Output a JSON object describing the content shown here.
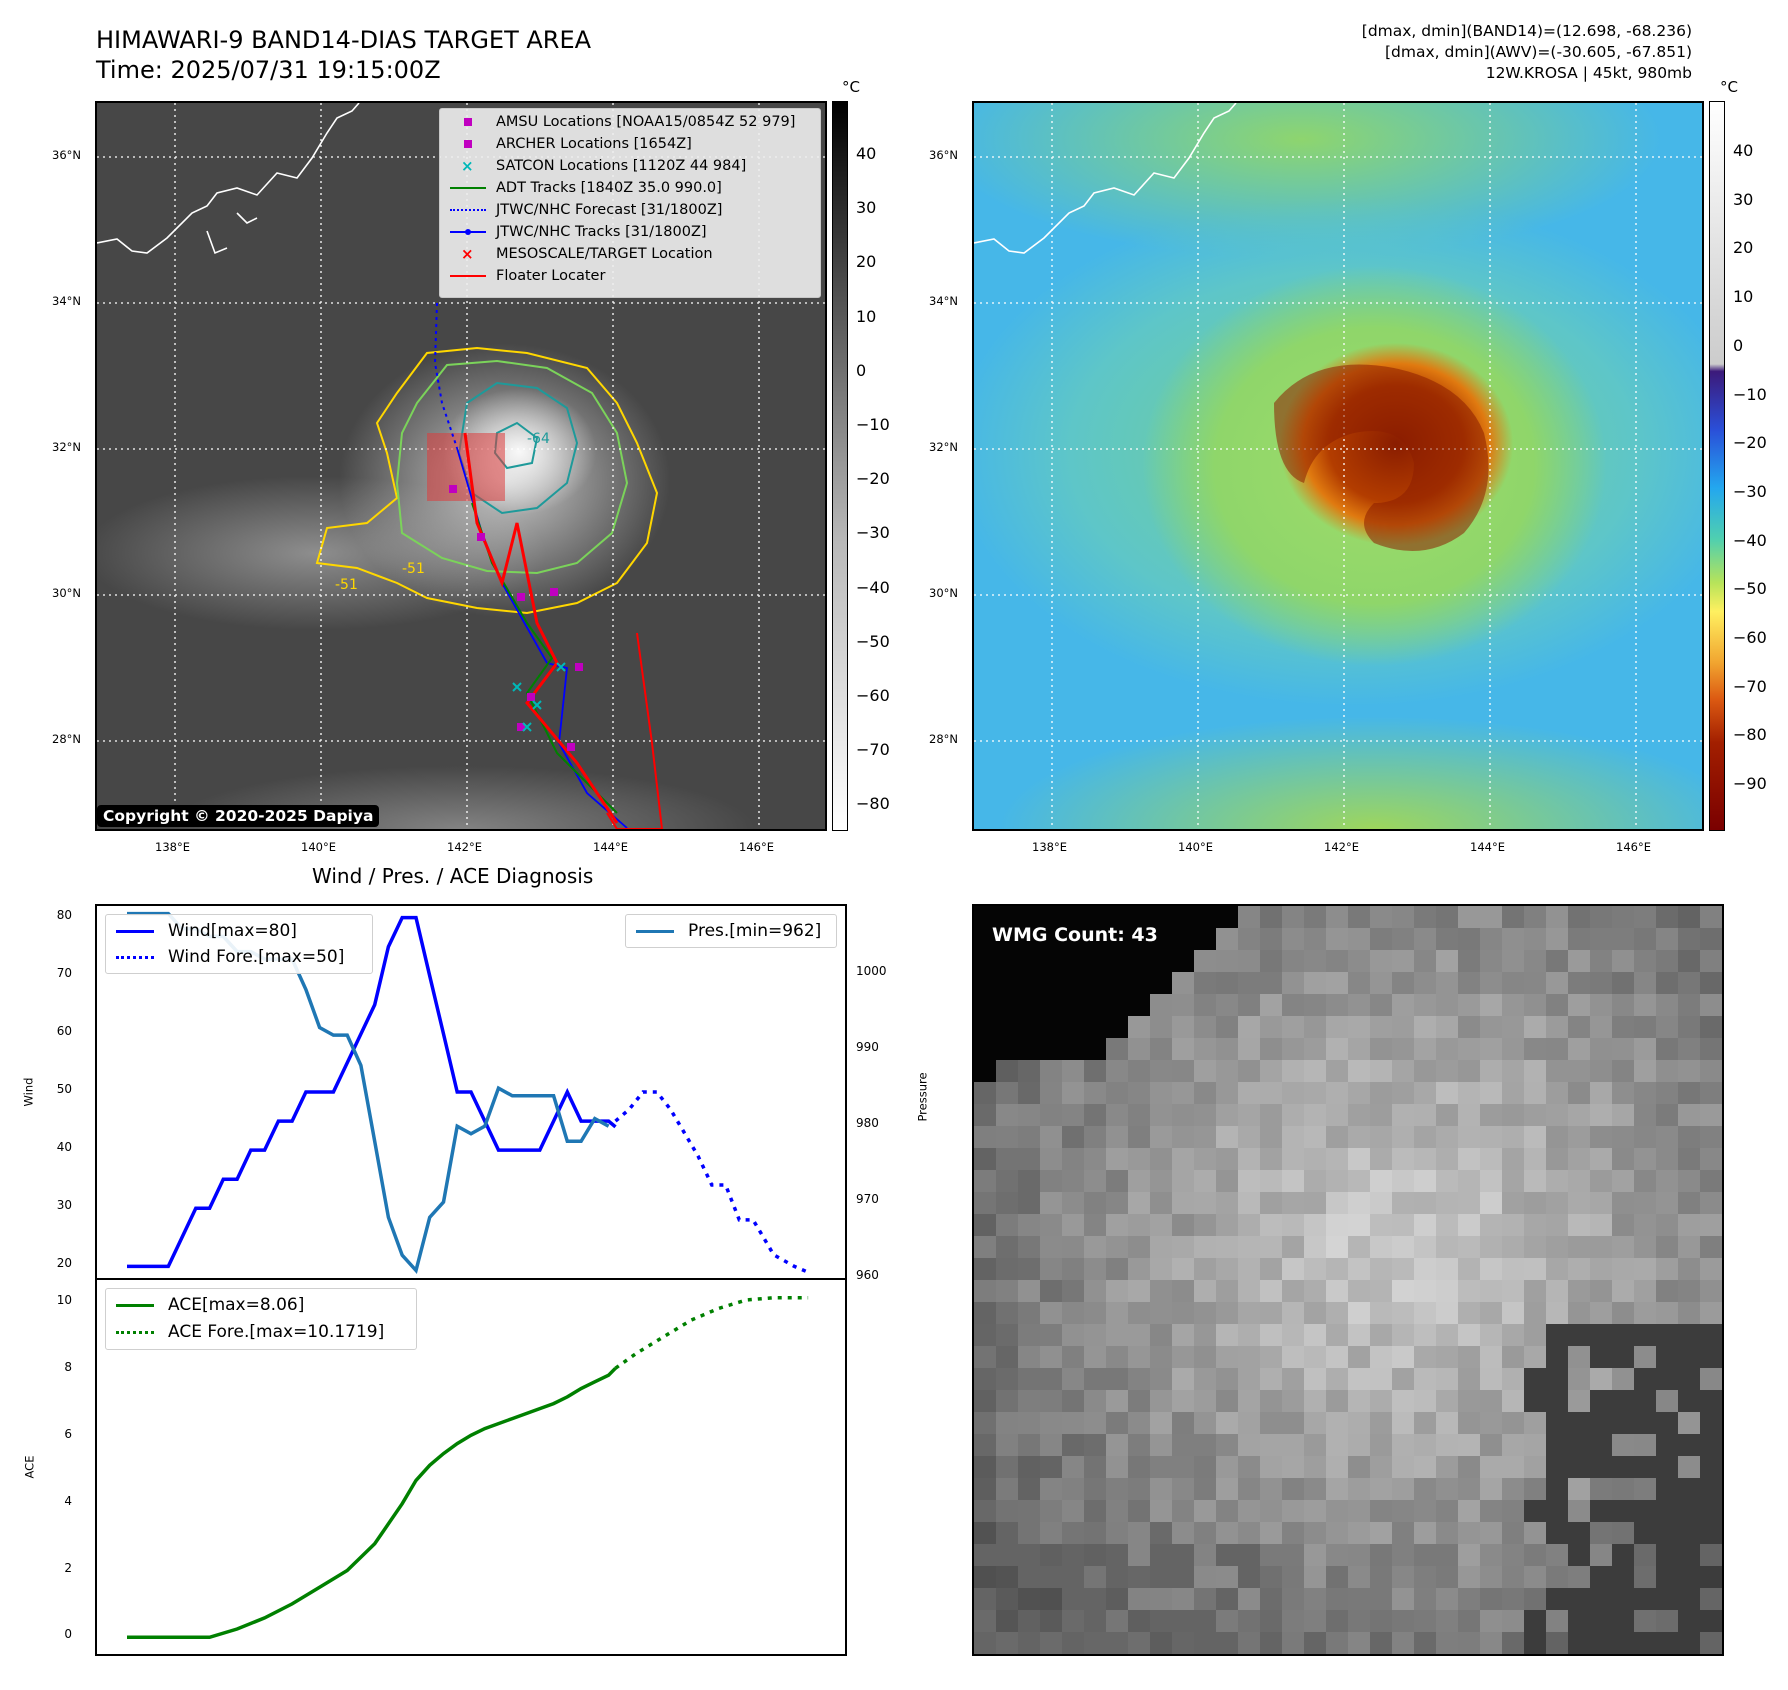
{
  "header": {
    "title_line1": "HIMAWARI-9 BAND14-DIAS TARGET AREA",
    "title_line2": "Time: 2025/07/31 19:15:00Z",
    "info_line1": "[dmax, dmin](BAND14)=(12.698, -68.236)",
    "info_line2": "[dmax, dmin](AWV)=(-30.605, -67.851)",
    "info_line3": "12W.KROSA | 45kt, 980mb"
  },
  "map": {
    "lat_labels": [
      "36°N",
      "34°N",
      "32°N",
      "30°N",
      "28°N"
    ],
    "lon_labels": [
      "138°E",
      "140°E",
      "142°E",
      "144°E",
      "146°E"
    ],
    "copyright": "Copyright © 2020-2025 Dapiya",
    "contour_labels": [
      "-64",
      "-51",
      "-51"
    ],
    "legend": [
      {
        "label": "AMSU Locations [NOAA15/0854Z 52 979]",
        "color": "#c000c0",
        "symbol": "square"
      },
      {
        "label": "ARCHER Locations [1654Z]",
        "color": "#c000c0",
        "symbol": "square"
      },
      {
        "label": "SATCON Locations [1120Z 44 984]",
        "color": "#00b8b8",
        "symbol": "x"
      },
      {
        "label": "ADT Tracks [1840Z 35.0 990.0]",
        "color": "#008000",
        "symbol": "line"
      },
      {
        "label": "JTWC/NHC Forecast [31/1800Z]",
        "color": "#0000ff",
        "symbol": "dotted"
      },
      {
        "label": "JTWC/NHC Tracks [31/1800Z]",
        "color": "#0000ff",
        "symbol": "line-dot"
      },
      {
        "label": "MESOSCALE/TARGET Location",
        "color": "#ff0000",
        "symbol": "x"
      },
      {
        "label": "Floater Locater",
        "color": "#ff0000",
        "symbol": "line"
      }
    ]
  },
  "colorbar_ir": {
    "unit": "°C",
    "ticks": [
      "40",
      "30",
      "20",
      "10",
      "0",
      "−10",
      "−20",
      "−30",
      "−40",
      "−50",
      "−60",
      "−70",
      "−80"
    ]
  },
  "colorbar_awv": {
    "unit": "°C",
    "ticks": [
      "40",
      "30",
      "20",
      "10",
      "0",
      "−10",
      "−20",
      "−30",
      "−40",
      "−50",
      "−60",
      "−70",
      "−80",
      "−90"
    ]
  },
  "wmg": {
    "label": "WMG Count: 43"
  },
  "chart_data": [
    {
      "type": "line",
      "title": "Wind / Pres. / ACE Diagnosis",
      "ylabel": "Wind",
      "y2label": "Pressure",
      "ylim": [
        18,
        82
      ],
      "y2lim": [
        960,
        1009
      ],
      "yticks": [
        "80",
        "70",
        "60",
        "50",
        "40",
        "30",
        "20"
      ],
      "y2ticks": [
        "1000",
        "990",
        "980",
        "970",
        "960"
      ],
      "legend_left": [
        "Wind[max=80]",
        "Wind Fore.[max=50]"
      ],
      "legend_right": [
        "Pres.[min=962]"
      ],
      "series": [
        {
          "name": "Wind[max=80]",
          "color": "#0000ff",
          "style": "solid",
          "values": [
            [
              0,
              20
            ],
            [
              3,
              20
            ],
            [
              5,
              30
            ],
            [
              6,
              30
            ],
            [
              7,
              35
            ],
            [
              8,
              35
            ],
            [
              9,
              40
            ],
            [
              10,
              40
            ],
            [
              11,
              45
            ],
            [
              12,
              45
            ],
            [
              13,
              50
            ],
            [
              15,
              50
            ],
            [
              16,
              55
            ],
            [
              18,
              65
            ],
            [
              19,
              75
            ],
            [
              20,
              80
            ],
            [
              21,
              80
            ],
            [
              22,
              70
            ],
            [
              23,
              60
            ],
            [
              24,
              50
            ],
            [
              25,
              50
            ],
            [
              26,
              45
            ],
            [
              27,
              40
            ],
            [
              30,
              40
            ],
            [
              31,
              45
            ],
            [
              32,
              50
            ],
            [
              33,
              45
            ],
            [
              35,
              45
            ],
            [
              35.5,
              44
            ]
          ]
        },
        {
          "name": "Wind Fore.[max=50]",
          "color": "#0000ff",
          "style": "dotted",
          "values": [
            [
              35.5,
              45
            ],
            [
              36.5,
              47
            ],
            [
              37.5,
              50
            ],
            [
              38.5,
              50
            ],
            [
              39.5,
              47
            ],
            [
              40.5,
              43
            ],
            [
              41.5,
              39
            ],
            [
              42.5,
              34
            ],
            [
              43.5,
              34
            ],
            [
              44.5,
              28
            ],
            [
              45.5,
              28
            ],
            [
              46,
              26
            ],
            [
              47,
              22
            ],
            [
              48.5,
              20
            ],
            [
              49.5,
              19
            ]
          ]
        },
        {
          "name": "Pres.[min=962]",
          "color": "#1f77b4",
          "style": "solid",
          "axis": "right",
          "values": [
            [
              0,
              1008
            ],
            [
              3,
              1008
            ],
            [
              4,
              1006
            ],
            [
              5,
              1006
            ],
            [
              6,
              1005
            ],
            [
              7,
              1005
            ],
            [
              8,
              1003
            ],
            [
              9,
              1003
            ],
            [
              10,
              1002
            ],
            [
              12,
              1002
            ],
            [
              13,
              998
            ],
            [
              14,
              993
            ],
            [
              15,
              992
            ],
            [
              16,
              992
            ],
            [
              17,
              988
            ],
            [
              18,
              978
            ],
            [
              19,
              968
            ],
            [
              20,
              963
            ],
            [
              21,
              961
            ],
            [
              22,
              968
            ],
            [
              23,
              970
            ],
            [
              24,
              980
            ],
            [
              25,
              979
            ],
            [
              26,
              980
            ],
            [
              27,
              985
            ],
            [
              28,
              984
            ],
            [
              31,
              984
            ],
            [
              32,
              978
            ],
            [
              33,
              978
            ],
            [
              34,
              981
            ],
            [
              35,
              980
            ]
          ]
        }
      ]
    },
    {
      "type": "line",
      "ylabel": "ACE",
      "ylim": [
        -0.5,
        10.7
      ],
      "yticks": [
        "10",
        "8",
        "6",
        "4",
        "2",
        "0"
      ],
      "legend": [
        "ACE[max=8.06]",
        "ACE Fore.[max=10.1719]"
      ],
      "series": [
        {
          "name": "ACE[max=8.06]",
          "color": "#008000",
          "style": "solid",
          "values": [
            [
              0,
              0
            ],
            [
              6,
              0
            ],
            [
              8,
              0.25
            ],
            [
              10,
              0.58
            ],
            [
              12,
              1.0
            ],
            [
              14,
              1.5
            ],
            [
              16,
              2.0
            ],
            [
              18,
              2.8
            ],
            [
              20,
              4.0
            ],
            [
              21,
              4.7
            ],
            [
              22,
              5.15
            ],
            [
              23,
              5.5
            ],
            [
              24,
              5.8
            ],
            [
              25,
              6.05
            ],
            [
              26,
              6.25
            ],
            [
              28,
              6.55
            ],
            [
              30,
              6.85
            ],
            [
              31,
              7.0
            ],
            [
              32,
              7.2
            ],
            [
              33,
              7.45
            ],
            [
              34,
              7.65
            ],
            [
              35,
              7.85
            ],
            [
              35.5,
              8.06
            ]
          ]
        },
        {
          "name": "ACE Fore.[max=10.1719]",
          "color": "#008000",
          "style": "dotted",
          "values": [
            [
              35.5,
              8.06
            ],
            [
              37,
              8.5
            ],
            [
              39,
              9.0
            ],
            [
              41,
              9.5
            ],
            [
              43,
              9.85
            ],
            [
              45,
              10.1
            ],
            [
              47,
              10.17
            ],
            [
              49.5,
              10.17
            ]
          ]
        }
      ]
    }
  ]
}
